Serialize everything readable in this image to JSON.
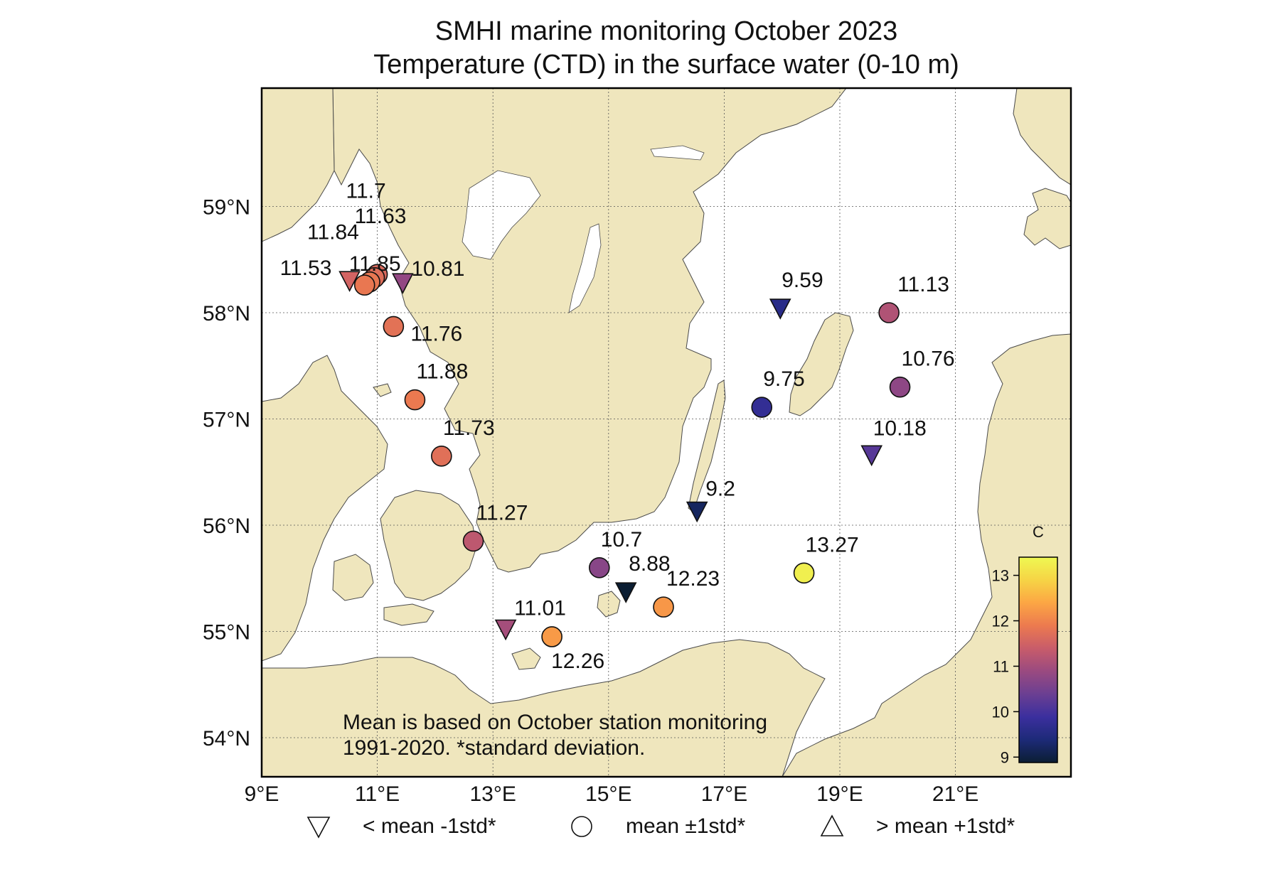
{
  "title_line1": "SMHI marine monitoring October 2023",
  "title_line2": "Temperature (CTD) in the surface water (0-10 m)",
  "map": {
    "lon_range": [
      9,
      23
    ],
    "lat_range": [
      53.5,
      60
    ],
    "lon_ticks": [
      {
        "value": 9,
        "label": "9°E"
      },
      {
        "value": 11,
        "label": "11°E"
      },
      {
        "value": 13,
        "label": "13°E"
      },
      {
        "value": 15,
        "label": "15°E"
      },
      {
        "value": 17,
        "label": "17°E"
      },
      {
        "value": 19,
        "label": "19°E"
      },
      {
        "value": 21,
        "label": "21°E"
      }
    ],
    "lat_ticks": [
      {
        "value": 54,
        "label": "54°N"
      },
      {
        "value": 55,
        "label": "55°N"
      },
      {
        "value": 56,
        "label": "56°N"
      },
      {
        "value": 57,
        "label": "57°N"
      },
      {
        "value": 58,
        "label": "58°N"
      },
      {
        "value": 59,
        "label": "59°N"
      }
    ],
    "grid": true,
    "land_color": "#efe6bd",
    "water_color": "#ffffff"
  },
  "note_line1": "Mean is based on October station monitoring",
  "note_line2": "1991-2020. *standard deviation.",
  "colorbar": {
    "unit": "C",
    "min": 8.88,
    "max": 13.4,
    "ticks": [
      {
        "value": 9,
        "label": "9"
      },
      {
        "value": 10,
        "label": "10"
      },
      {
        "value": 11,
        "label": "11"
      },
      {
        "value": 12,
        "label": "12"
      },
      {
        "value": 13,
        "label": "13"
      }
    ],
    "colormap": [
      "#0b1e33",
      "#1d2a78",
      "#3b2f9e",
      "#6b3f92",
      "#9a4a80",
      "#c85c6a",
      "#ec7a4f",
      "#fca644",
      "#f6d445",
      "#eef852"
    ]
  },
  "legend": [
    {
      "symbol": "triangle-down",
      "label": "< mean -1std*"
    },
    {
      "symbol": "circle",
      "label": "mean ±1std*"
    },
    {
      "symbol": "triangle-up",
      "label": "> mean +1std*"
    }
  ],
  "stations": [
    {
      "lon": 11.0,
      "lat": 58.36,
      "value": 11.63,
      "label": "11.63",
      "symbol": "circle"
    },
    {
      "lon": 10.95,
      "lat": 58.33,
      "value": 11.7,
      "label": "11.7",
      "symbol": "circle"
    },
    {
      "lon": 10.87,
      "lat": 58.29,
      "value": 11.84,
      "label": "11.84",
      "symbol": "circle"
    },
    {
      "lon": 10.78,
      "lat": 58.26,
      "value": 11.85,
      "label": "11.85",
      "symbol": "circle"
    },
    {
      "lon": 10.52,
      "lat": 58.3,
      "value": 11.53,
      "label": "11.53",
      "symbol": "triangle-down"
    },
    {
      "lon": 11.44,
      "lat": 58.28,
      "value": 10.81,
      "label": "10.81",
      "symbol": "triangle-down"
    },
    {
      "lon": 11.28,
      "lat": 57.87,
      "value": 11.76,
      "label": "11.76",
      "symbol": "circle"
    },
    {
      "lon": 11.65,
      "lat": 57.18,
      "value": 11.88,
      "label": "11.88",
      "symbol": "circle"
    },
    {
      "lon": 12.11,
      "lat": 56.65,
      "value": 11.73,
      "label": "11.73",
      "symbol": "circle"
    },
    {
      "lon": 12.66,
      "lat": 55.85,
      "value": 11.27,
      "label": "11.27",
      "symbol": "circle"
    },
    {
      "lon": 13.22,
      "lat": 55.02,
      "value": 11.01,
      "label": "11.01",
      "symbol": "triangle-down"
    },
    {
      "lon": 14.02,
      "lat": 54.95,
      "value": 12.26,
      "label": "12.26",
      "symbol": "circle"
    },
    {
      "lon": 14.84,
      "lat": 55.6,
      "value": 10.7,
      "label": "10.7",
      "symbol": "circle"
    },
    {
      "lon": 15.3,
      "lat": 55.37,
      "value": 8.88,
      "label": "8.88",
      "symbol": "triangle-down"
    },
    {
      "lon": 15.95,
      "lat": 55.23,
      "value": 12.23,
      "label": "12.23",
      "symbol": "circle"
    },
    {
      "lon": 16.53,
      "lat": 56.13,
      "value": 9.2,
      "label": "9.2",
      "symbol": "triangle-down"
    },
    {
      "lon": 17.65,
      "lat": 57.11,
      "value": 9.75,
      "label": "9.75",
      "symbol": "circle"
    },
    {
      "lon": 17.97,
      "lat": 58.04,
      "value": 9.59,
      "label": "9.59",
      "symbol": "triangle-down"
    },
    {
      "lon": 19.85,
      "lat": 58.0,
      "value": 11.13,
      "label": "11.13",
      "symbol": "circle"
    },
    {
      "lon": 20.04,
      "lat": 57.3,
      "value": 10.76,
      "label": "10.76",
      "symbol": "circle"
    },
    {
      "lon": 19.55,
      "lat": 56.66,
      "value": 10.18,
      "label": "10.18",
      "symbol": "triangle-down"
    },
    {
      "lon": 18.38,
      "lat": 55.55,
      "value": 13.27,
      "label": "13.27",
      "symbol": "circle"
    }
  ]
}
